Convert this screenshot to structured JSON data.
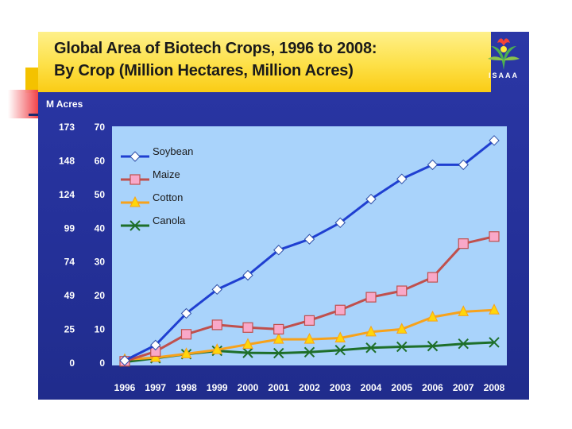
{
  "title_line1": "Global Area of Biotech Crops, 1996 to 2008:",
  "title_line2": "By Crop (Million Hectares, Million Acres)",
  "logo_text": "ISAAA",
  "secondary_axis_title": "M Acres",
  "colors": {
    "slide_bg": "#2b37a6",
    "plot_bg": "#a9d3fb",
    "title_bg": "#fde047"
  },
  "chart_data": {
    "type": "line",
    "title": "Global Area of Biotech Crops, 1996 to 2008: By Crop (Million Hectares, Million Acres)",
    "x": [
      "1996",
      "1997",
      "1998",
      "1999",
      "2000",
      "2001",
      "2002",
      "2003",
      "2004",
      "2005",
      "2006",
      "2007",
      "2008"
    ],
    "ylim": [
      0,
      70
    ],
    "yticks": [
      0,
      10,
      20,
      30,
      40,
      50,
      60,
      70
    ],
    "y2_title": "M Acres",
    "y2_ticks": [
      "0",
      "25",
      "49",
      "74",
      "99",
      "124",
      "148",
      "173"
    ],
    "grid": false,
    "legend_position": "top-left",
    "series": [
      {
        "name": "Soybean",
        "color": "#1f3fd1",
        "marker": "diamond",
        "marker_fill": "#ffffff",
        "values": [
          0.5,
          5.1,
          14.5,
          21.6,
          25.8,
          33.3,
          36.5,
          41.4,
          48.4,
          54.4,
          58.6,
          58.6,
          65.8
        ]
      },
      {
        "name": "Maize",
        "color": "#c0504d",
        "marker": "square",
        "marker_fill": "#f9a8c8",
        "values": [
          0.3,
          3.2,
          8.3,
          11.1,
          10.3,
          9.8,
          12.4,
          15.5,
          19.3,
          21.2,
          25.2,
          35.2,
          37.3
        ]
      },
      {
        "name": "Cotton",
        "color": "#f7a21b",
        "marker": "triangle",
        "marker_fill": "#ffd60a",
        "values": [
          0.8,
          1.4,
          2.5,
          3.7,
          5.3,
          6.8,
          6.8,
          7.2,
          9.0,
          9.8,
          13.4,
          15.0,
          15.5
        ]
      },
      {
        "name": "Canola",
        "color": "#1e6f2a",
        "marker": "x",
        "marker_fill": "#1e6f2a",
        "values": [
          0.1,
          1.2,
          2.4,
          3.4,
          2.8,
          2.7,
          3.0,
          3.6,
          4.3,
          4.6,
          4.8,
          5.5,
          5.9
        ]
      }
    ]
  }
}
